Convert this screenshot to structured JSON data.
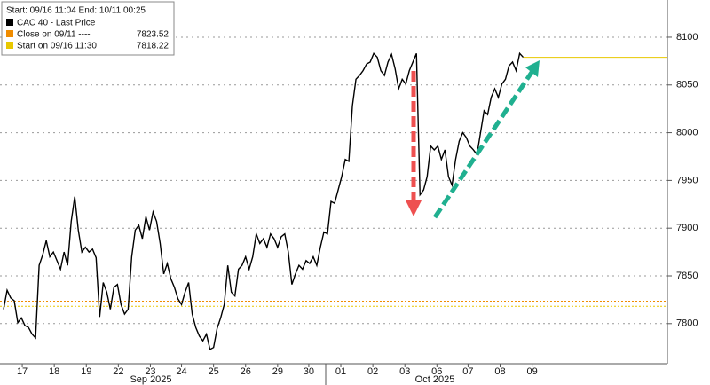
{
  "chart_data": {
    "type": "line",
    "header": "Start: 09/16 11:04 End: 10/11 00:25",
    "series": [
      {
        "name": "CAC 40 - Last Price",
        "color": "#000000",
        "values": [
          7815,
          7835,
          7827,
          7824,
          7801,
          7806,
          7798,
          7796,
          7789,
          7785,
          7861,
          7872,
          7887,
          7870,
          7875,
          7866,
          7857,
          7875,
          7861,
          7907,
          7933,
          7898,
          7875,
          7880,
          7875,
          7878,
          7869,
          7807,
          7843,
          7833,
          7815,
          7838,
          7841,
          7820,
          7810,
          7815,
          7870,
          7898,
          7903,
          7889,
          7912,
          7898,
          7917,
          7907,
          7884,
          7852,
          7863,
          7847,
          7838,
          7826,
          7820,
          7833,
          7843,
          7810,
          7796,
          7787,
          7782,
          7789,
          7773,
          7775,
          7795,
          7806,
          7820,
          7861,
          7833,
          7829,
          7857,
          7861,
          7870,
          7857,
          7870,
          7894,
          7884,
          7889,
          7880,
          7894,
          7889,
          7880,
          7891,
          7894,
          7875,
          7841,
          7852,
          7861,
          7857,
          7866,
          7863,
          7870,
          7861,
          7880,
          7896,
          7894,
          7928,
          7926,
          7940,
          7954,
          7972,
          7970,
          8028,
          8056,
          8060,
          8065,
          8072,
          8074,
          8083,
          8079,
          8065,
          8060,
          8074,
          8082,
          8067,
          8046,
          8056,
          8051,
          8065,
          8074,
          8083,
          7935,
          7940,
          7954,
          7986,
          7982,
          7986,
          7972,
          7982,
          7954,
          7945,
          7972,
          7991,
          8000,
          7995,
          7986,
          7982,
          7977,
          8000,
          8023,
          8019,
          8037,
          8046,
          8037,
          8051,
          8056,
          8070,
          8074,
          8065,
          8083,
          8079
        ]
      }
    ],
    "reference_lines": [
      {
        "name": "Close on 09/11 ----",
        "value": 7823.52,
        "color": "#f08c00"
      },
      {
        "name": "Start on 09/16 11:30",
        "value": 7818.22,
        "color": "#e8c800"
      }
    ],
    "xlim": [
      -1,
      186.5
    ],
    "xticks": [
      {
        "value": 5.25,
        "label": "17"
      },
      {
        "value": 14.25,
        "label": "18"
      },
      {
        "value": 23.25,
        "label": "19"
      },
      {
        "value": 32.25,
        "label": "22"
      },
      {
        "value": 41.25,
        "label": "23"
      },
      {
        "value": 50,
        "label": "24"
      },
      {
        "value": 59,
        "label": "25"
      },
      {
        "value": 68,
        "label": "26"
      },
      {
        "value": 77,
        "label": "29"
      },
      {
        "value": 85.75,
        "label": "30"
      },
      {
        "value": 94.75,
        "label": "01"
      },
      {
        "value": 103.75,
        "label": "02"
      },
      {
        "value": 112.75,
        "label": "03"
      },
      {
        "value": 121.75,
        "label": "06"
      },
      {
        "value": 130.5,
        "label": "07"
      },
      {
        "value": 139.5,
        "label": "08"
      },
      {
        "value": 148.5,
        "label": "09"
      }
    ],
    "months": [
      "Sep 2025",
      "Oct 2025"
    ],
    "ylim": [
      7758,
      8139
    ],
    "yticks": [
      7800,
      7850,
      7900,
      7950,
      8000,
      8050,
      8100
    ],
    "grid": true
  }
}
